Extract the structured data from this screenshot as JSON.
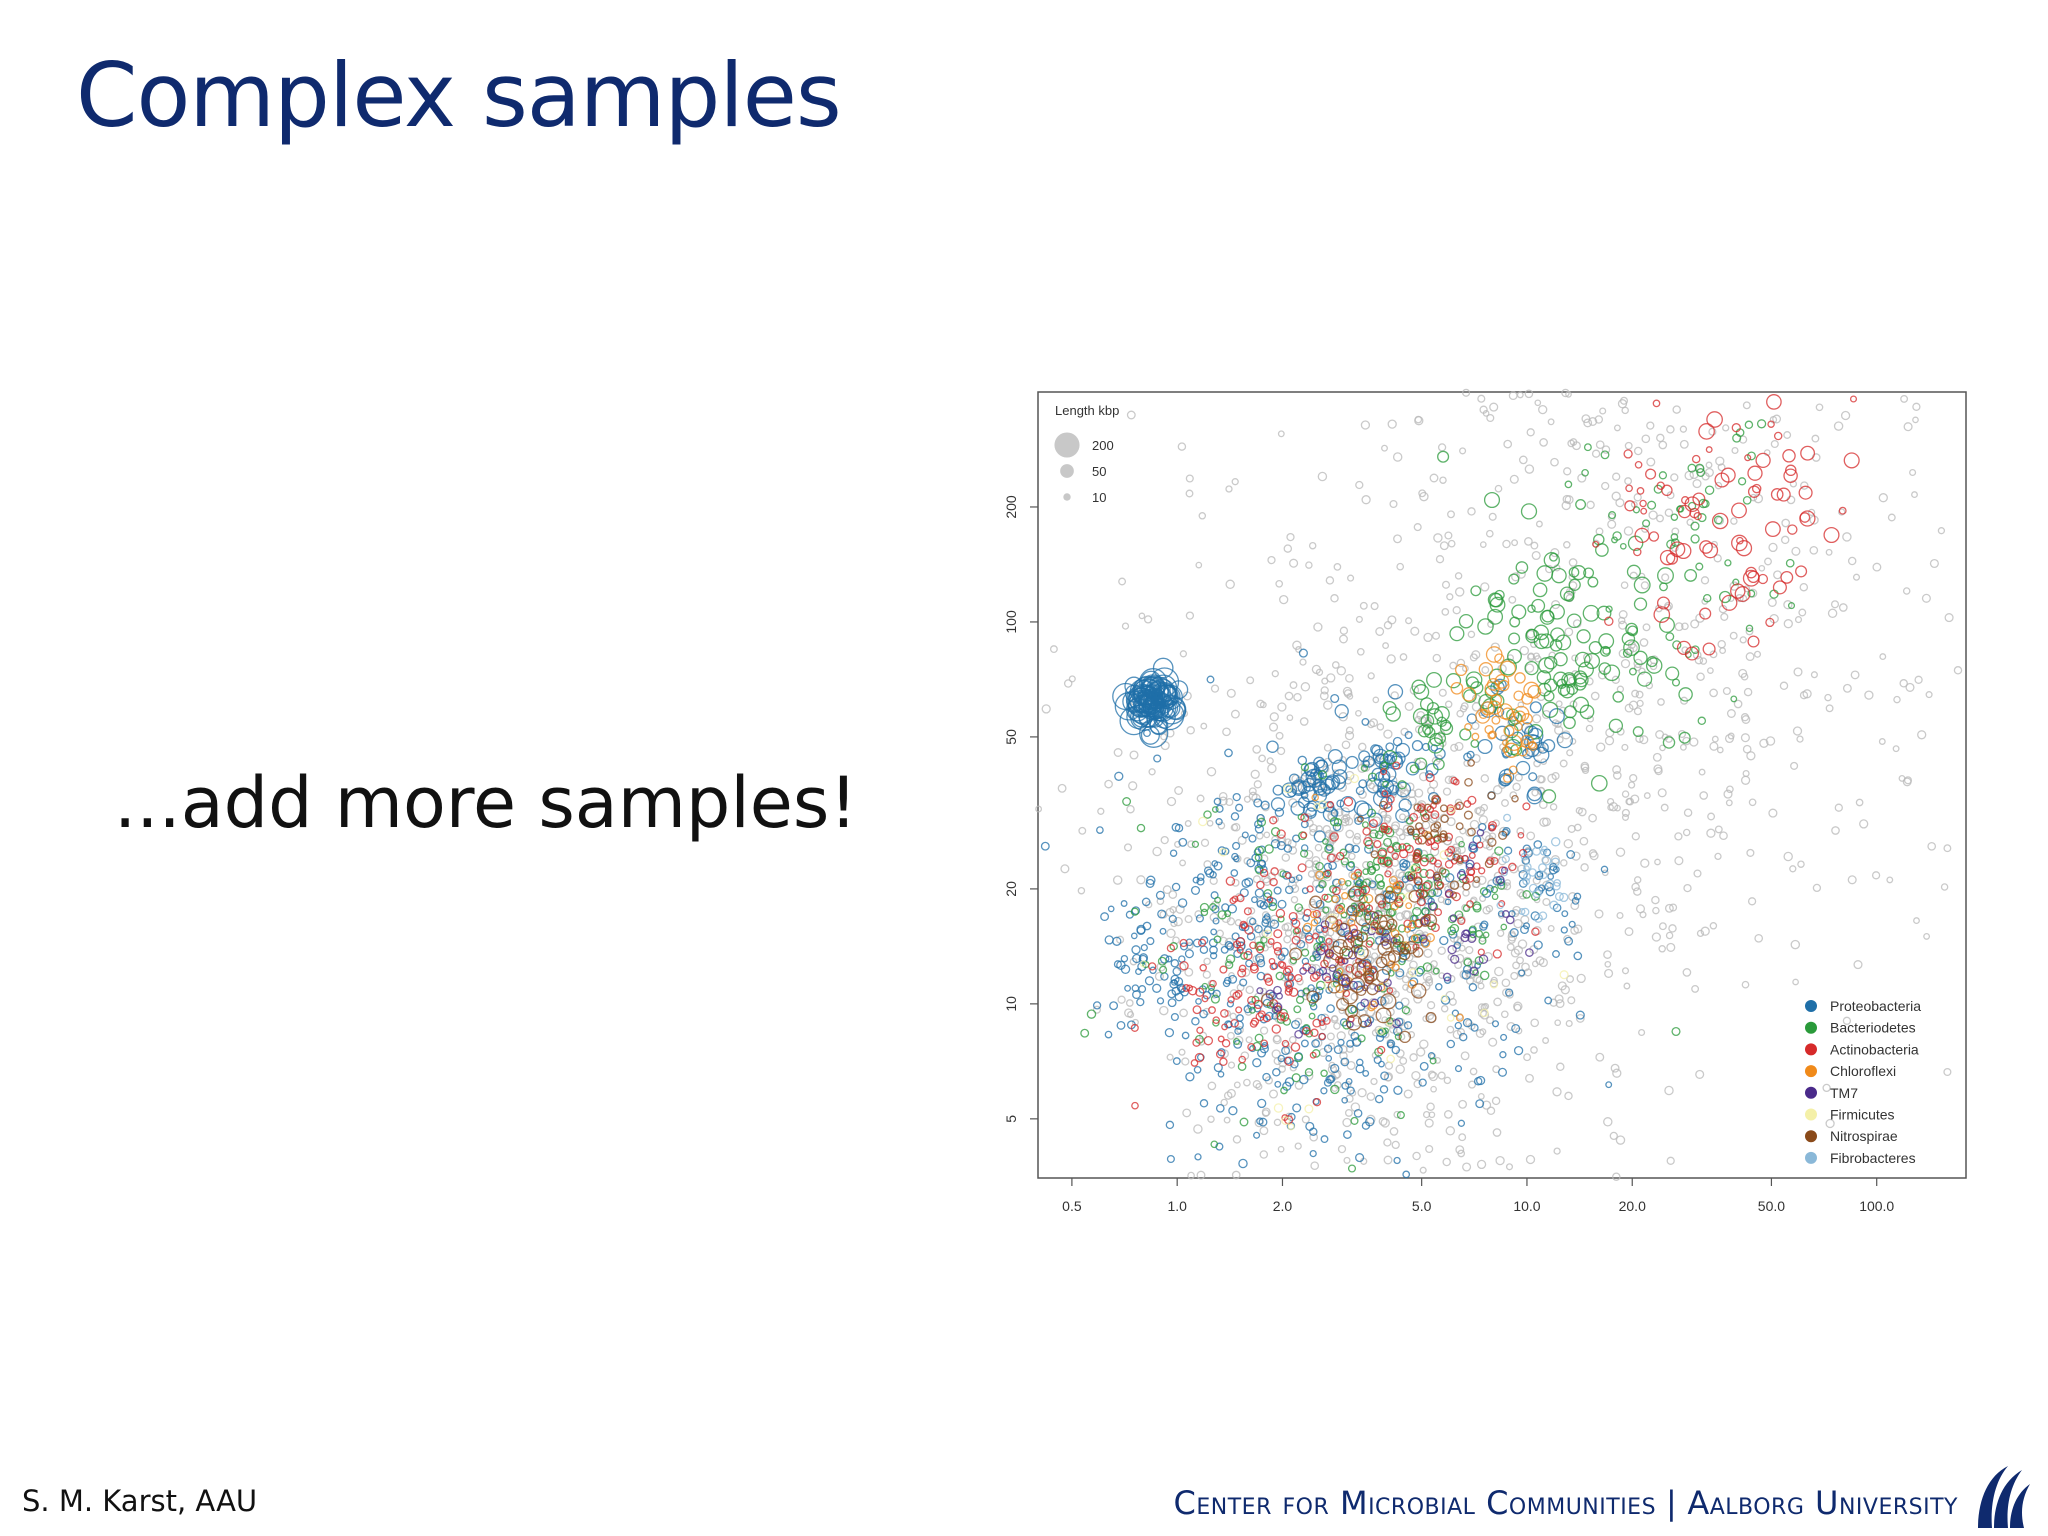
{
  "slide": {
    "title": "Complex samples",
    "bullet": "...add more samples!",
    "footer_author": "S. M. Karst, AAU",
    "footer_center": "Center for Microbial Communities",
    "footer_sep": "|",
    "footer_university": "Aalborg University",
    "logo_icon": "aau-wave-logo-icon"
  },
  "chart_data": {
    "type": "scatter",
    "title": "",
    "xlabel": "",
    "ylabel": "",
    "x_scale": "log",
    "y_scale": "log",
    "xlim": [
      0.4,
      180
    ],
    "ylim": [
      3.5,
      400
    ],
    "x_ticks": [
      0.5,
      1.0,
      2.0,
      5.0,
      10.0,
      20.0,
      50.0,
      100.0
    ],
    "x_tick_labels": [
      "0.5",
      "1.0",
      "2.0",
      "5.0",
      "10.0",
      "20.0",
      "50.0",
      "100.0"
    ],
    "y_ticks": [
      5,
      10,
      20,
      50,
      100,
      200
    ],
    "y_tick_labels": [
      "5",
      "10",
      "20",
      "50",
      "100",
      "200"
    ],
    "grid": false,
    "size_legend": {
      "title": "Length kbp",
      "entries": [
        {
          "label": "200",
          "value": 200
        },
        {
          "label": "50",
          "value": 50
        },
        {
          "label": "10",
          "value": 10
        }
      ],
      "placement": "top-left"
    },
    "legend_placement": "bottom-right",
    "series": [
      {
        "name": "Proteobacteria",
        "color": "#1f6fa8",
        "clusters": [
          [
            0.85,
            62,
            90,
            200,
            0.05
          ],
          [
            2.5,
            37,
            40,
            50,
            0.1
          ],
          [
            4.0,
            40,
            40,
            50,
            0.1
          ],
          [
            9.5,
            46,
            30,
            50,
            0.12
          ],
          [
            3.2,
            14,
            300,
            10,
            0.5
          ],
          [
            1.5,
            21,
            70,
            10,
            0.2
          ],
          [
            0.9,
            12,
            60,
            10,
            0.15
          ],
          [
            10,
            21,
            30,
            10,
            0.15
          ],
          [
            3.0,
            6.5,
            30,
            10,
            0.15
          ],
          [
            1.6,
            9,
            30,
            10,
            0.25
          ]
        ]
      },
      {
        "name": "Bacteriodetes",
        "color": "#2a9a3a",
        "clusters": [
          [
            13,
            90,
            120,
            50,
            0.25
          ],
          [
            5.3,
            55,
            25,
            50,
            0.08
          ],
          [
            4.2,
            22,
            60,
            10,
            0.15
          ],
          [
            7,
            17,
            25,
            10,
            0.12
          ],
          [
            2.5,
            14,
            150,
            10,
            0.4
          ],
          [
            25,
            150,
            60,
            10,
            0.3
          ]
        ]
      },
      {
        "name": "Actinobacteria",
        "color": "#d62a2a",
        "clusters": [
          [
            40,
            175,
            60,
            50,
            0.25
          ],
          [
            1.7,
            11,
            100,
            10,
            0.25
          ],
          [
            3.0,
            18,
            80,
            10,
            0.25
          ],
          [
            5.5,
            25,
            80,
            10,
            0.2
          ],
          [
            30,
            220,
            25,
            10,
            0.3
          ]
        ]
      },
      {
        "name": "Chloroflexi",
        "color": "#f08a1a",
        "clusters": [
          [
            8.5,
            62,
            30,
            50,
            0.1
          ],
          [
            8.5,
            47,
            15,
            10,
            0.08
          ],
          [
            3.5,
            15,
            40,
            10,
            0.2
          ]
        ]
      },
      {
        "name": "TM7",
        "color": "#4a2a8a",
        "clusters": [
          [
            6.5,
            17,
            25,
            10,
            0.15
          ],
          [
            2.8,
            11,
            40,
            10,
            0.15
          ]
        ]
      },
      {
        "name": "Firmicutes",
        "color": "#f4f0a8",
        "clusters": [
          [
            3.0,
            15,
            30,
            10,
            0.4
          ]
        ]
      },
      {
        "name": "Nitrospirae",
        "color": "#8a4a1a",
        "clusters": [
          [
            3.6,
            14,
            60,
            50,
            0.15
          ],
          [
            5.5,
            26,
            50,
            10,
            0.15
          ]
        ]
      },
      {
        "name": "Fibrobacteres",
        "color": "#8ab8d8",
        "clusters": [
          [
            11,
            21,
            30,
            10,
            0.1
          ]
        ]
      }
    ],
    "background_points": {
      "color": "#b8b8b8",
      "clusters": [
        [
          3.5,
          15,
          900,
          10,
          0.55
        ],
        [
          20,
          95,
          700,
          10,
          0.9
        ],
        [
          1.5,
          35,
          60,
          10,
          0.5
        ]
      ]
    }
  }
}
